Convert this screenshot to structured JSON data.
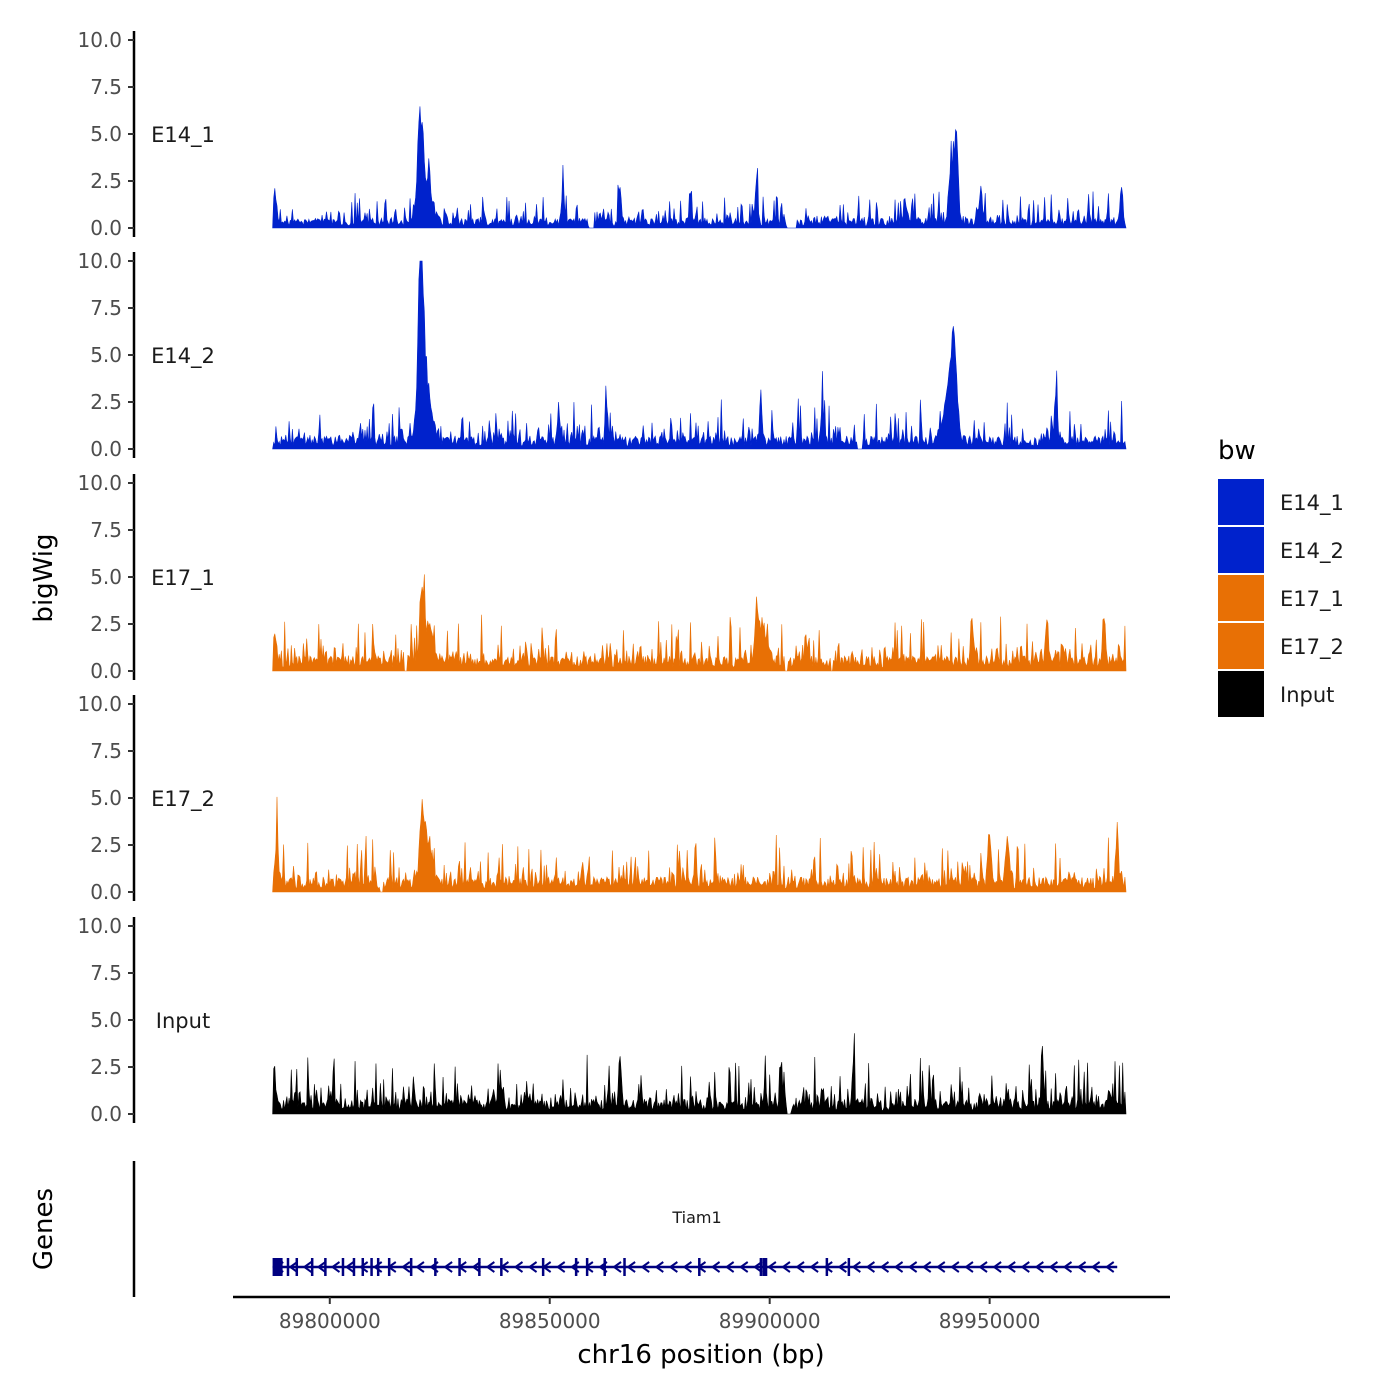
{
  "chart_data": {
    "type": "area",
    "title": "",
    "xlabel": "chr16 position (bp)",
    "ylabel": "bigWig",
    "genes_label": "Genes",
    "ylim": [
      0,
      10
    ],
    "y_ticks": [
      "0.0",
      "2.5",
      "5.0",
      "7.5",
      "10.0"
    ],
    "y_tick_values": [
      0,
      2.5,
      5,
      7.5,
      10
    ],
    "x_range": [
      89778000,
      89991000
    ],
    "data_range": [
      89787000,
      89981000
    ],
    "x_ticks": [
      89800000,
      89850000,
      89900000,
      89950000
    ],
    "x_tick_labels": [
      "89800000",
      "89850000",
      "89900000",
      "89950000"
    ],
    "legend": {
      "title": "bw",
      "position": "right",
      "items": [
        {
          "label": "E14_1",
          "color": "#0022CC"
        },
        {
          "label": "E14_2",
          "color": "#0022CC"
        },
        {
          "label": "E17_1",
          "color": "#E87005"
        },
        {
          "label": "E17_2",
          "color": "#E87005"
        },
        {
          "label": "Input",
          "color": "#000000"
        }
      ]
    },
    "series": [
      {
        "name": "E14_1",
        "color": "#0022CC",
        "baseline": 0.45,
        "noise": 0.75,
        "seed": 11,
        "peaks": [
          {
            "pos": 89787500,
            "height": 1.9,
            "width": 600
          },
          {
            "pos": 89820500,
            "height": 5.0,
            "width": 800
          },
          {
            "pos": 89821800,
            "height": 2.6,
            "width": 1800
          },
          {
            "pos": 89941500,
            "height": 3.8,
            "width": 900
          },
          {
            "pos": 89942500,
            "height": 4.3,
            "width": 500
          },
          {
            "pos": 89853000,
            "height": 2.0,
            "width": 400
          },
          {
            "pos": 89866000,
            "height": 2.2,
            "width": 400
          },
          {
            "pos": 89882000,
            "height": 2.1,
            "width": 400
          },
          {
            "pos": 89897000,
            "height": 2.5,
            "width": 400
          },
          {
            "pos": 89948000,
            "height": 2.5,
            "width": 400
          },
          {
            "pos": 89980000,
            "height": 2.3,
            "width": 400
          }
        ],
        "gaps": [
          [
            89785000,
            89787000
          ],
          [
            89859000,
            89860000
          ],
          [
            89904000,
            89906000
          ],
          [
            89981000,
            89990000
          ]
        ]
      },
      {
        "name": "E14_2",
        "color": "#0022CC",
        "baseline": 0.6,
        "noise": 1.0,
        "seed": 23,
        "peaks": [
          {
            "pos": 89820700,
            "height": 9.8,
            "width": 700
          },
          {
            "pos": 89821500,
            "height": 4.0,
            "width": 1900
          },
          {
            "pos": 89941800,
            "height": 4.6,
            "width": 900
          },
          {
            "pos": 89940500,
            "height": 2.6,
            "width": 1600
          },
          {
            "pos": 89852000,
            "height": 2.3,
            "width": 400
          },
          {
            "pos": 89863000,
            "height": 2.0,
            "width": 400
          },
          {
            "pos": 89898000,
            "height": 2.7,
            "width": 400
          },
          {
            "pos": 89912000,
            "height": 2.4,
            "width": 400
          },
          {
            "pos": 89965000,
            "height": 2.8,
            "width": 400
          }
        ],
        "gaps": [
          [
            89785000,
            89787000
          ],
          [
            89920000,
            89921000
          ],
          [
            89981000,
            89990000
          ]
        ]
      },
      {
        "name": "E17_1",
        "color": "#E87005",
        "baseline": 0.7,
        "noise": 1.1,
        "seed": 37,
        "peaks": [
          {
            "pos": 89787500,
            "height": 1.8,
            "width": 600
          },
          {
            "pos": 89821000,
            "height": 3.4,
            "width": 700
          },
          {
            "pos": 89822500,
            "height": 2.2,
            "width": 1600
          },
          {
            "pos": 89897000,
            "height": 2.8,
            "width": 600
          },
          {
            "pos": 89898500,
            "height": 2.0,
            "width": 1500
          },
          {
            "pos": 89946000,
            "height": 2.4,
            "width": 500
          },
          {
            "pos": 89963000,
            "height": 2.4,
            "width": 500
          },
          {
            "pos": 89976000,
            "height": 2.4,
            "width": 500
          }
        ],
        "gaps": [
          [
            89785000,
            89787000
          ],
          [
            89817000,
            89817600
          ],
          [
            89903500,
            89904200
          ],
          [
            89913800,
            89914400
          ],
          [
            89981000,
            89990000
          ]
        ]
      },
      {
        "name": "E17_2",
        "color": "#E87005",
        "baseline": 0.7,
        "noise": 1.1,
        "seed": 51,
        "peaks": [
          {
            "pos": 89788000,
            "height": 2.8,
            "width": 500
          },
          {
            "pos": 89821000,
            "height": 3.2,
            "width": 700
          },
          {
            "pos": 89822200,
            "height": 2.1,
            "width": 1600
          },
          {
            "pos": 89950000,
            "height": 3.0,
            "width": 500
          },
          {
            "pos": 89954000,
            "height": 2.4,
            "width": 600
          },
          {
            "pos": 89979000,
            "height": 2.7,
            "width": 500
          }
        ],
        "gaps": [
          [
            89785000,
            89787000
          ],
          [
            89811500,
            89812200
          ],
          [
            89981000,
            89990000
          ]
        ]
      },
      {
        "name": "Input",
        "color": "#000000",
        "baseline": 0.7,
        "noise": 1.2,
        "seed": 73,
        "peaks": [
          {
            "pos": 89787300,
            "height": 1.7,
            "width": 500
          },
          {
            "pos": 89866000,
            "height": 2.6,
            "width": 400
          },
          {
            "pos": 89919000,
            "height": 2.7,
            "width": 400
          },
          {
            "pos": 89962000,
            "height": 2.6,
            "width": 400
          }
        ],
        "gaps": [
          [
            89785000,
            89787000
          ],
          [
            89904000,
            89904800
          ],
          [
            89981000,
            89990000
          ]
        ]
      }
    ],
    "gene": {
      "name": "Tiam1",
      "color": "#000080",
      "strand": "-",
      "start": 89787000,
      "end": 89979000,
      "exons": [
        89787000,
        89790500,
        89792500,
        89796000,
        89799000,
        89803000,
        89805500,
        89807500,
        89809500,
        89811000,
        89813500,
        89818500,
        89824000,
        89829500,
        89834000,
        89839000,
        89848500,
        89856000,
        89858500,
        89862500,
        89867000,
        89884000,
        89898000,
        89913000,
        89918000
      ]
    }
  }
}
